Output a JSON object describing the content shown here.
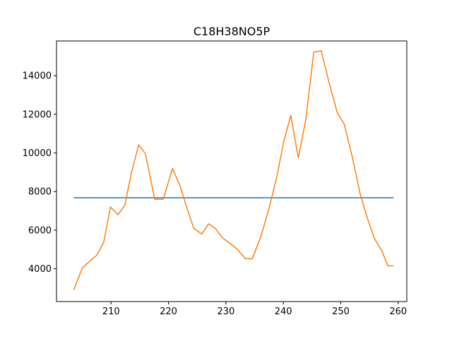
{
  "chart_data": {
    "type": "line",
    "title": "C18H38NO5P",
    "xlabel": "",
    "ylabel": "",
    "xlim": [
      200.5,
      261.5
    ],
    "ylim": [
      2300,
      15800
    ],
    "x_ticks": [
      210,
      220,
      230,
      240,
      250,
      260
    ],
    "y_ticks": [
      4000,
      6000,
      8000,
      10000,
      12000,
      14000
    ],
    "grid": false,
    "legend": "none",
    "series": [
      {
        "color": "#1f77b4",
        "x": [
          203.5,
          259.2
        ],
        "y": [
          7680,
          7680
        ]
      },
      {
        "color": "#ff7f0e",
        "x": [
          203.5,
          205.0,
          206.3,
          207.5,
          208.7,
          209.9,
          211.2,
          212.4,
          213.5,
          214.8,
          216.0,
          217.6,
          219.1,
          220.7,
          222.0,
          223.2,
          224.4,
          225.8,
          227.0,
          228.2,
          229.4,
          230.8,
          232.0,
          233.4,
          234.6,
          236.0,
          237.4,
          238.9,
          240.0,
          241.3,
          242.6,
          243.9,
          245.3,
          246.6,
          248.0,
          249.4,
          250.6,
          252.0,
          253.4,
          254.6,
          255.8,
          257.2,
          258.2,
          259.2
        ],
        "y": [
          2900,
          4050,
          4400,
          4700,
          5350,
          7200,
          6800,
          7300,
          8900,
          10420,
          9950,
          7600,
          7600,
          9200,
          8300,
          7150,
          6100,
          5800,
          6330,
          6070,
          5600,
          5300,
          5000,
          4520,
          4520,
          5600,
          7000,
          8800,
          10500,
          11950,
          9750,
          11700,
          15220,
          15290,
          13600,
          12080,
          11500,
          9800,
          7850,
          6650,
          5600,
          4900,
          4150,
          4150
        ]
      }
    ]
  }
}
